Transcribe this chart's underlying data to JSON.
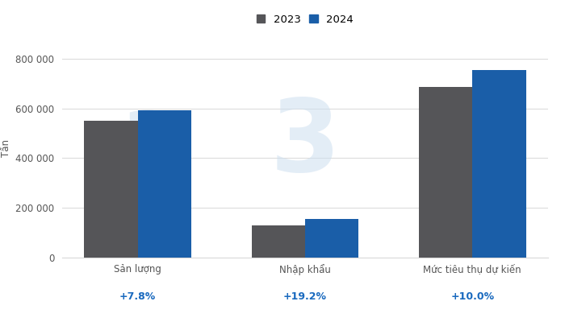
{
  "categories": [
    "Sản lượng",
    "Nhập khẩu",
    "Mức tiêu thụ dự kiến"
  ],
  "values_2023": [
    550000,
    130000,
    685000
  ],
  "values_2024": [
    593000,
    155000,
    754000
  ],
  "pct_changes": [
    "+7.8%",
    "+19.2%",
    "+10.0%"
  ],
  "color_2023": "#555558",
  "color_2024": "#1a5ea8",
  "pct_color": "#1a6abf",
  "ylabel": "Tấn",
  "legend_2023": "2023",
  "legend_2024": "2024",
  "ylim": [
    0,
    880000
  ],
  "yticks": [
    0,
    200000,
    400000,
    600000,
    800000
  ],
  "ytick_labels": [
    "0",
    "200 000",
    "400 000",
    "600 000",
    "800 000"
  ],
  "bar_width": 0.32,
  "background_color": "#ffffff",
  "grid_color": "#d8d8d8",
  "tick_fontsize": 8.5,
  "legend_fontsize": 9.5,
  "pct_fontsize": 9,
  "watermark_color": "#cddff0",
  "watermark_alpha": 0.55
}
